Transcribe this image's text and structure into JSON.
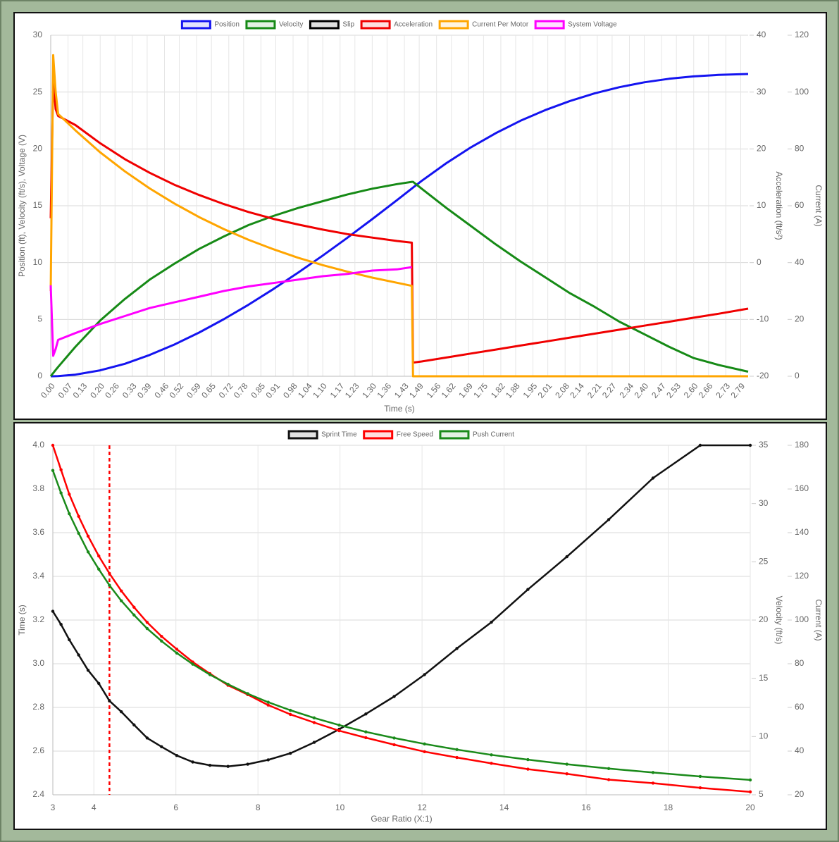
{
  "chart_data": [
    {
      "type": "line",
      "xlabel": "Time (s)",
      "ylabel": "Position (ft), Velocity (ft/s), Voltage (V)",
      "y2label": "Acceleration (ft/s²)",
      "y3label": "Current (A)",
      "legend": "top",
      "grid": true,
      "x": [
        0,
        0.01,
        0.02,
        0.03,
        0.1,
        0.2,
        0.3,
        0.4,
        0.5,
        0.6,
        0.7,
        0.8,
        0.9,
        1.0,
        1.1,
        1.2,
        1.3,
        1.4,
        1.46,
        1.465,
        1.5,
        1.6,
        1.7,
        1.8,
        1.9,
        2.0,
        2.1,
        2.2,
        2.3,
        2.4,
        2.5,
        2.6,
        2.7,
        2.82
      ],
      "xlim": [
        0,
        2.82
      ],
      "xticks": [
        {
          "value": 0,
          "label": "0.00"
        },
        0.07,
        0.13,
        {
          "value": 0.2,
          "label": "0.20"
        },
        0.26,
        0.33,
        0.39,
        0.46,
        0.52,
        0.59,
        0.65,
        0.72,
        0.78,
        0.85,
        0.91,
        0.98,
        1.04,
        {
          "value": 1.1,
          "label": "1.10"
        },
        1.17,
        1.23,
        {
          "value": 1.3,
          "label": "1.30"
        },
        1.36,
        1.43,
        1.49,
        1.56,
        1.62,
        1.69,
        1.75,
        1.82,
        1.88,
        1.95,
        2.01,
        2.08,
        2.14,
        2.21,
        2.27,
        2.34,
        {
          "value": 2.4,
          "label": "2.40"
        },
        2.47,
        2.53,
        {
          "value": 2.6,
          "label": "2.60"
        },
        2.66,
        2.73,
        2.79
      ],
      "ylim": [
        0,
        30
      ],
      "yticks": [
        0,
        5,
        10,
        15,
        20,
        25,
        30
      ],
      "y2lim": [
        -20,
        40
      ],
      "y2ticks": [
        -20,
        -10,
        0,
        10,
        20,
        30,
        40
      ],
      "y3lim": [
        0,
        120
      ],
      "y3ticks": [
        0,
        20,
        40,
        60,
        80,
        100,
        120
      ],
      "series": [
        {
          "name": "Position",
          "color": "#1414f0",
          "axis": "y",
          "values": [
            0,
            0.001,
            0.006,
            0.012,
            0.14,
            0.52,
            1.1,
            1.87,
            2.79,
            3.84,
            5.02,
            6.3,
            7.67,
            9.11,
            10.62,
            12.19,
            13.82,
            15.49,
            16.51,
            16.6,
            17.19,
            18.75,
            20.15,
            21.39,
            22.48,
            23.42,
            24.22,
            24.89,
            25.43,
            25.86,
            26.17,
            26.38,
            26.51,
            26.59
          ]
        },
        {
          "name": "Velocity",
          "color": "#168a16",
          "axis": "y",
          "values": [
            0,
            0.28,
            0.55,
            0.82,
            2.6,
            4.9,
            6.8,
            8.5,
            9.9,
            11.2,
            12.3,
            13.3,
            14.1,
            14.8,
            15.4,
            16.0,
            16.5,
            16.9,
            17.1,
            17.1,
            16.5,
            14.8,
            13.2,
            11.6,
            10.1,
            8.7,
            7.3,
            6.1,
            4.8,
            3.7,
            2.6,
            1.6,
            1.0,
            0.4
          ]
        },
        {
          "name": "Slip",
          "color": "#000000",
          "axis": "y",
          "values": [
            null,
            null,
            null,
            null,
            null,
            null,
            null,
            null,
            null,
            null,
            null,
            null,
            null,
            null,
            null,
            null,
            null,
            null,
            null,
            null,
            null,
            null,
            null,
            null,
            null,
            null,
            null,
            null,
            null,
            null,
            null,
            null,
            null,
            null
          ]
        },
        {
          "name": "Acceleration",
          "color": "#f00000",
          "axis": "y2",
          "values": [
            7.8,
            32,
            27,
            25.8,
            24.2,
            21.0,
            18.2,
            15.8,
            13.7,
            11.9,
            10.3,
            8.9,
            7.7,
            6.7,
            5.8,
            5.0,
            4.4,
            3.8,
            3.5,
            -17.6,
            -17.4,
            -16.7,
            -16.0,
            -15.3,
            -14.6,
            -13.9,
            -13.2,
            -12.5,
            -11.8,
            -11.1,
            -10.4,
            -9.7,
            -9.0,
            -8.1
          ]
        },
        {
          "name": "Current Per Motor",
          "color": "#ffa500",
          "axis": "y3",
          "values": [
            30,
            113,
            100,
            92.3,
            86.5,
            78.8,
            72.1,
            66.1,
            60.8,
            56.0,
            51.8,
            48.0,
            44.7,
            41.7,
            39.1,
            36.8,
            34.7,
            32.9,
            31.8,
            0,
            0,
            0,
            0,
            0,
            0,
            0,
            0,
            0,
            0,
            0,
            0,
            0,
            0,
            0
          ]
        },
        {
          "name": "System Voltage",
          "color": "#ff00ff",
          "axis": "y",
          "values": [
            8,
            1.8,
            2.4,
            3.2,
            3.8,
            4.6,
            5.3,
            6.0,
            6.5,
            7.0,
            7.5,
            7.9,
            8.2,
            8.5,
            8.8,
            9.0,
            9.3,
            9.4,
            9.6,
            null,
            null,
            null,
            null,
            null,
            null,
            null,
            null,
            null,
            null,
            null,
            null,
            null,
            null,
            null
          ]
        }
      ]
    },
    {
      "type": "line",
      "xlabel": "Gear Ratio (X:1)",
      "ylabel": "Time (s)",
      "y2label": "Velocity (ft/s)",
      "y3label": "Current (A)",
      "legend": "top",
      "grid": true,
      "point_markers": true,
      "marker_x": 4.38,
      "marker_color": "#ff0000",
      "x": [
        3.0,
        3.2,
        3.4,
        3.63,
        3.86,
        4.12,
        4.38,
        4.67,
        4.98,
        5.3,
        5.65,
        6.02,
        6.41,
        6.83,
        7.27,
        7.75,
        8.25,
        8.79,
        9.37,
        9.98,
        10.63,
        11.32,
        12.06,
        12.85,
        13.69,
        14.58,
        15.53,
        16.55,
        17.63,
        18.78,
        20.0
      ],
      "xlim": [
        3,
        20
      ],
      "xticks": [
        3,
        4,
        6,
        8,
        10,
        12,
        14,
        16,
        18,
        20
      ],
      "ylim": [
        2.4,
        4.0
      ],
      "yticks": [
        2.4,
        2.6,
        2.8,
        {
          "value": 3,
          "label": "3.0"
        },
        3.2,
        3.4,
        3.6,
        3.8,
        {
          "value": 4,
          "label": "4.0"
        }
      ],
      "y2lim": [
        5,
        35
      ],
      "y2ticks": [
        5,
        10,
        15,
        20,
        25,
        30,
        35
      ],
      "y3lim": [
        20,
        180
      ],
      "y3ticks": [
        20,
        40,
        60,
        80,
        100,
        120,
        140,
        160,
        180
      ],
      "series": [
        {
          "name": "Sprint Time",
          "color": "#111111",
          "axis": "y",
          "values": [
            3.24,
            3.18,
            3.11,
            3.04,
            2.97,
            2.91,
            2.83,
            2.78,
            2.72,
            2.66,
            2.62,
            2.58,
            2.55,
            2.535,
            2.53,
            2.54,
            2.56,
            2.59,
            2.64,
            2.7,
            2.77,
            2.85,
            2.95,
            3.07,
            3.19,
            3.34,
            3.49,
            3.66,
            3.85,
            4.0,
            4.0
          ]
        },
        {
          "name": "Free Speed",
          "color": "#ff0000",
          "axis": "y2",
          "values": [
            35.0,
            32.9,
            30.8,
            28.9,
            27.2,
            25.5,
            24.0,
            22.5,
            21.1,
            19.8,
            18.6,
            17.5,
            16.4,
            15.4,
            14.4,
            13.6,
            12.7,
            11.9,
            11.2,
            10.5,
            9.9,
            9.3,
            8.7,
            8.2,
            7.7,
            7.2,
            6.8,
            6.3,
            6.0,
            5.6,
            5.25
          ]
        },
        {
          "name": "Push Current",
          "color": "#1a8a1a",
          "axis": "y3",
          "values": [
            168.5,
            158.2,
            148.7,
            139.7,
            131.2,
            123.3,
            115.9,
            108.8,
            102.3,
            96.1,
            90.4,
            84.9,
            79.8,
            75.0,
            70.6,
            66.3,
            62.4,
            58.7,
            55.2,
            51.9,
            48.8,
            46.0,
            43.3,
            40.7,
            38.3,
            36.1,
            34.0,
            32.0,
            30.2,
            28.4,
            26.8
          ]
        }
      ]
    }
  ]
}
